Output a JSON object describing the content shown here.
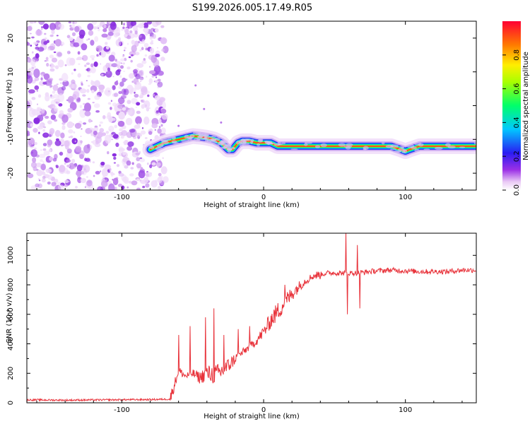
{
  "title": "S199.2026.005.17.49.R05",
  "chart_data": [
    {
      "type": "heatmap",
      "xlabel": "Height of straight line (km)",
      "ylabel": "Frequency (Hz)",
      "xlim": [
        -167,
        150
      ],
      "ylim": [
        -25,
        25
      ],
      "xticks": [
        -100,
        0,
        100
      ],
      "yticks": [
        -20,
        -10,
        0,
        10,
        20
      ],
      "colorbar": {
        "label": "Normalized spectral amplitude",
        "range": [
          0,
          1
        ],
        "ticks": [
          "0.0",
          "0.2",
          "0.4",
          "0.6",
          "0.8"
        ],
        "tick_values": [
          0,
          0.2,
          0.4,
          0.6,
          0.8
        ]
      },
      "noise_region_x": [
        -167,
        -73
      ],
      "ridge": {
        "x": [
          -80,
          -75,
          -70,
          -65,
          -60,
          -55,
          -50,
          -45,
          -40,
          -35,
          -30,
          -25,
          -22,
          -18,
          -15,
          -10,
          -5,
          0,
          5,
          10,
          15,
          30,
          50,
          70,
          90,
          97,
          100,
          103,
          110,
          130,
          150
        ],
        "y": [
          -13,
          -12,
          -11,
          -10.5,
          -10,
          -9.5,
          -9,
          -9.2,
          -9.5,
          -10,
          -11,
          -13,
          -13,
          -11,
          -10.5,
          -10.5,
          -11,
          -11,
          -11,
          -12,
          -12,
          -12,
          -12,
          -12,
          -12,
          -13,
          -13.5,
          -13,
          -12,
          -12,
          -12
        ]
      }
    },
    {
      "type": "line",
      "color": "#e8323a",
      "xlabel": "Height of straight line (km)",
      "ylabel": "SNR (10 * v/v)",
      "xlim": [
        -167,
        150
      ],
      "ylim": [
        0,
        1150
      ],
      "xticks": [
        -100,
        0,
        100
      ],
      "yticks": [
        0,
        200,
        400,
        600,
        800,
        1000
      ],
      "series": [
        {
          "name": "SNR",
          "x": [
            -167,
            -140,
            -110,
            -80,
            -66,
            -63,
            -60,
            -55,
            -50,
            -45,
            -40,
            -35,
            -30,
            -25,
            -20,
            -15,
            -10,
            -5,
            0,
            5,
            10,
            15,
            20,
            25,
            30,
            35,
            40,
            45,
            50,
            55,
            60,
            65,
            70,
            75,
            80,
            90,
            100,
            110,
            120,
            130,
            140,
            150
          ],
          "y": [
            20,
            18,
            20,
            22,
            25,
            120,
            220,
            180,
            200,
            170,
            200,
            190,
            210,
            250,
            300,
            340,
            380,
            420,
            480,
            560,
            620,
            680,
            740,
            790,
            830,
            860,
            870,
            880,
            880,
            880,
            880,
            880,
            885,
            890,
            895,
            900,
            895,
            890,
            890,
            890,
            900,
            900
          ]
        }
      ],
      "spikes": [
        {
          "x": -60,
          "y": 460
        },
        {
          "x": -52,
          "y": 520
        },
        {
          "x": -41,
          "y": 580
        },
        {
          "x": -35,
          "y": 640
        },
        {
          "x": -28,
          "y": 460
        },
        {
          "x": -18,
          "y": 500
        },
        {
          "x": -10,
          "y": 520
        },
        {
          "x": 15,
          "y": 800
        },
        {
          "x": 58,
          "y": 1150
        },
        {
          "x": 59,
          "y": 600
        },
        {
          "x": 66,
          "y": 1070
        },
        {
          "x": 68,
          "y": 640
        }
      ]
    }
  ]
}
